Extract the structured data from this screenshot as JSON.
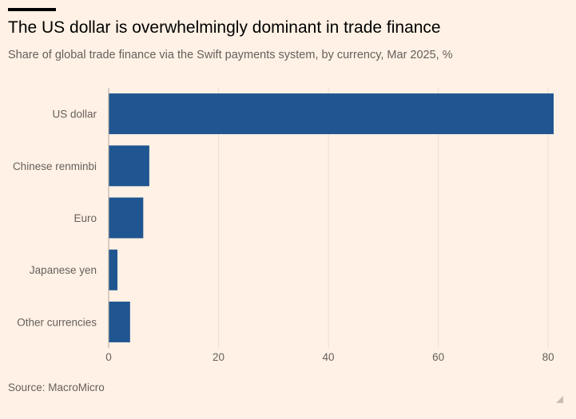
{
  "title": "The US dollar is overwhelmingly dominant in trade finance",
  "subtitle": "Share of global trade finance via the Swift payments system, by currency, Mar 2025, %",
  "source": "Source: MacroMicro",
  "colors": {
    "background": "#fff1e5",
    "bar": "#1f5590",
    "text": "#66605c",
    "grid": "#e9dfd5"
  },
  "chart_data": {
    "type": "bar",
    "orientation": "horizontal",
    "categories": [
      "US dollar",
      "Chinese renminbi",
      "Euro",
      "Japanese yen",
      "Other currencies"
    ],
    "values": [
      81,
      7.4,
      6.3,
      1.6,
      3.9
    ],
    "xlim": [
      0,
      81
    ],
    "xticks": [
      0,
      20,
      40,
      60,
      80
    ],
    "grid": true,
    "xlabel": "",
    "ylabel": ""
  }
}
